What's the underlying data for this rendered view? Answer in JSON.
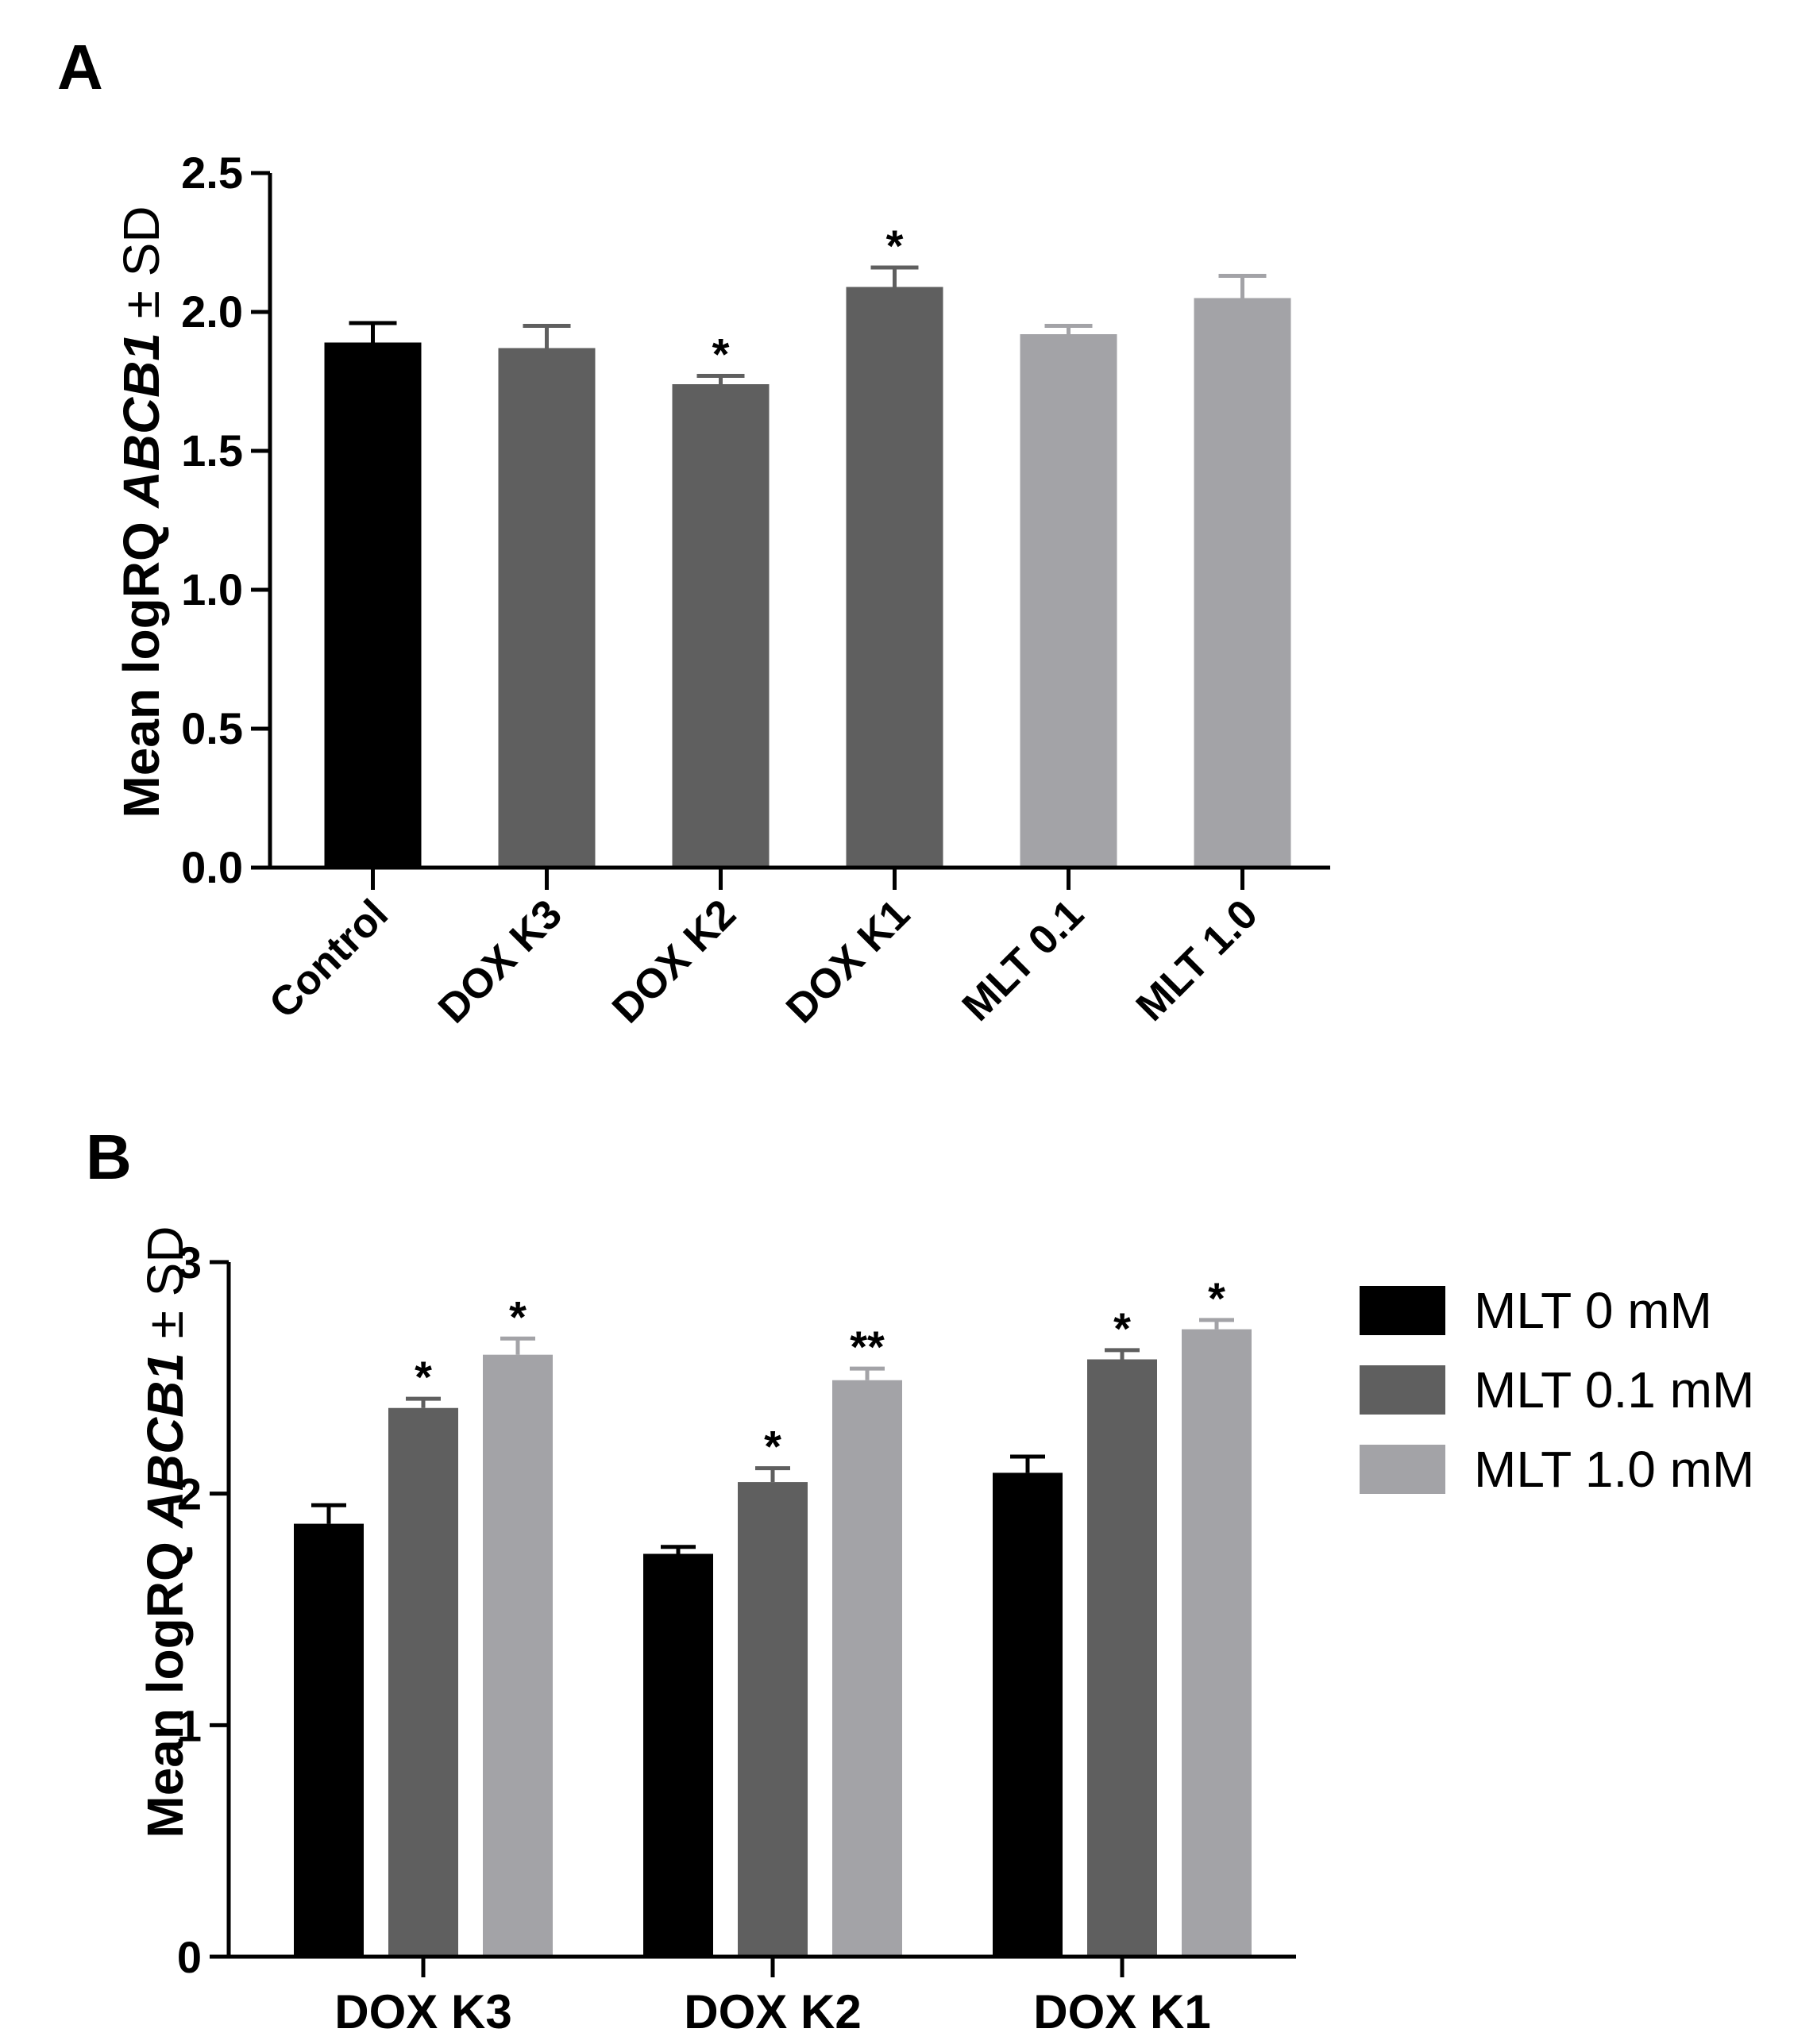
{
  "panels": {
    "a": {
      "label": "A"
    },
    "b": {
      "label": "B"
    }
  },
  "colors": {
    "control": "#000000",
    "dox": "#5f5f5f",
    "mlt": "#a3a3a7",
    "axis": "#000000"
  },
  "chart_data": [
    {
      "id": "A",
      "type": "bar",
      "categories": [
        "Control",
        "DOX K3",
        "DOX K2",
        "DOX K1",
        "MLT 0.1",
        "MLT 1.0"
      ],
      "values": [
        1.89,
        1.87,
        1.74,
        2.09,
        1.92,
        2.05
      ],
      "errors": [
        0.07,
        0.08,
        0.03,
        0.07,
        0.03,
        0.08
      ],
      "significance": [
        "",
        "",
        "*",
        "*",
        "",
        ""
      ],
      "bar_colors": [
        "#000000",
        "#5f5f5f",
        "#5f5f5f",
        "#5f5f5f",
        "#a3a3a7",
        "#a3a3a7"
      ],
      "title": "",
      "xlabel": "",
      "ylabel_prefix": "Mean logRQ ",
      "ylabel_gene": "ABCB1",
      "ylabel_suffix": "  ± SD",
      "ylim": [
        0,
        2.5
      ],
      "yticks": [
        "0.0",
        "0.5",
        "1.0",
        "1.5",
        "2.0",
        "2.5"
      ],
      "grid": false
    },
    {
      "id": "B",
      "type": "bar",
      "categories": [
        "DOX K3",
        "DOX K2",
        "DOX K1"
      ],
      "series": [
        {
          "name": "MLT 0 mM",
          "color": "#000000",
          "values": [
            1.87,
            1.74,
            2.09
          ],
          "errors": [
            0.08,
            0.03,
            0.07
          ],
          "significance": [
            "",
            "",
            ""
          ]
        },
        {
          "name": "MLT 0.1 mM",
          "color": "#5f5f5f",
          "values": [
            2.37,
            2.05,
            2.58
          ],
          "errors": [
            0.04,
            0.06,
            0.04
          ],
          "significance": [
            "*",
            "*",
            "*"
          ]
        },
        {
          "name": "MLT 1.0 mM",
          "color": "#a3a3a7",
          "values": [
            2.6,
            2.49,
            2.71
          ],
          "errors": [
            0.07,
            0.05,
            0.04
          ],
          "significance": [
            "*",
            "**",
            "*"
          ]
        }
      ],
      "title": "",
      "xlabel": "",
      "ylabel_prefix": "Mean logRQ ",
      "ylabel_gene": "ABCB1",
      "ylabel_suffix": "  ± SD",
      "ylim": [
        0,
        3
      ],
      "yticks": [
        "0",
        "1",
        "2",
        "3"
      ],
      "legend": "right",
      "grid": false
    }
  ]
}
